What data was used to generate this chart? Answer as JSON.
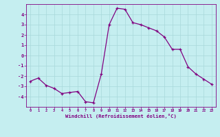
{
  "x": [
    0,
    1,
    2,
    3,
    4,
    5,
    6,
    7,
    8,
    9,
    10,
    11,
    12,
    13,
    14,
    15,
    16,
    17,
    18,
    19,
    20,
    21,
    22,
    23
  ],
  "y": [
    -2.5,
    -2.2,
    -2.9,
    -3.2,
    -3.7,
    -3.6,
    -3.5,
    -4.5,
    -4.6,
    -1.8,
    3.0,
    4.6,
    4.5,
    3.2,
    3.0,
    2.7,
    2.4,
    1.8,
    0.6,
    0.6,
    -1.1,
    -1.8,
    -2.3,
    -2.8
  ],
  "line_color": "#800080",
  "marker": "+",
  "marker_color": "#800080",
  "bg_color": "#c5eef0",
  "grid_color": "#a8d8da",
  "axis_color": "#800080",
  "tick_color": "#800080",
  "xlabel": "Windchill (Refroidissement éolien,°C)",
  "xlabel_color": "#800080",
  "xlim": [
    -0.5,
    23.5
  ],
  "ylim": [
    -5,
    5
  ],
  "yticks": [
    -4,
    -3,
    -2,
    -1,
    0,
    1,
    2,
    3,
    4
  ],
  "xticks": [
    0,
    1,
    2,
    3,
    4,
    5,
    6,
    7,
    8,
    9,
    10,
    11,
    12,
    13,
    14,
    15,
    16,
    17,
    18,
    19,
    20,
    21,
    22,
    23
  ],
  "linewidth": 0.9,
  "markersize": 3.5
}
